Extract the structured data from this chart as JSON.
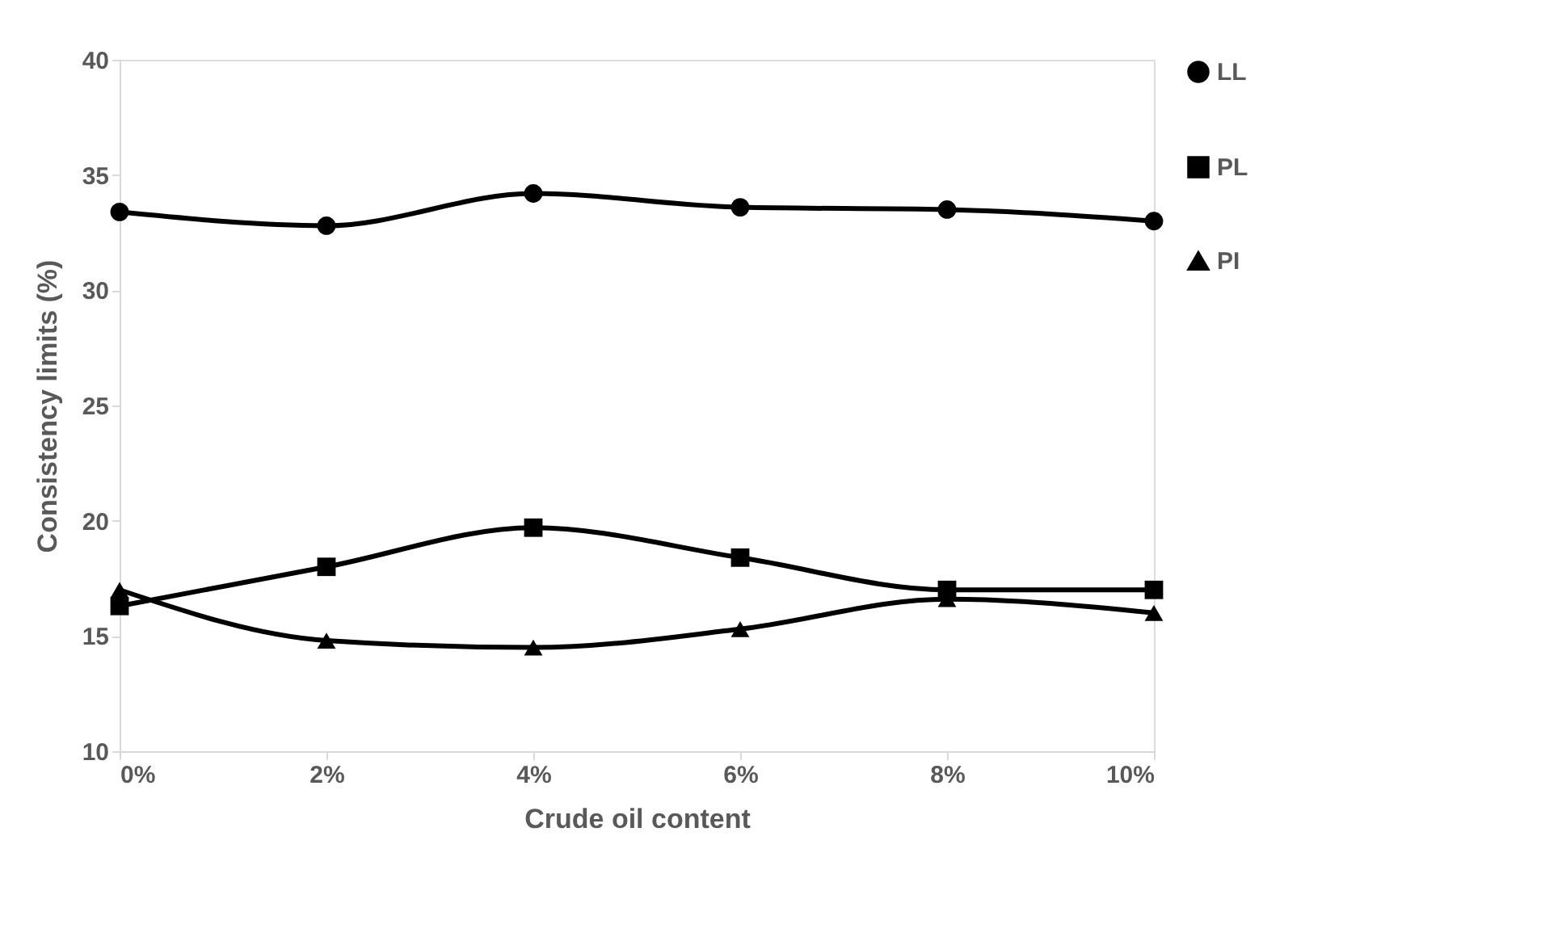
{
  "chart_data": {
    "type": "line",
    "xlabel": "Crude oil content",
    "ylabel": "Consistency limits (%)",
    "categories": [
      "0%",
      "2%",
      "4%",
      "6%",
      "8%",
      "10%"
    ],
    "series": [
      {
        "name": "LL",
        "color": "#000000",
        "marker": "circle",
        "values": [
          33.4,
          32.8,
          34.2,
          33.6,
          33.5,
          33.0
        ]
      },
      {
        "name": "PL",
        "color": "#000000",
        "marker": "square",
        "values": [
          16.3,
          18.0,
          19.7,
          18.4,
          17.0,
          17.0
        ]
      },
      {
        "name": "PI",
        "color": "#000000",
        "marker": "triangle",
        "values": [
          17.0,
          14.8,
          14.5,
          15.3,
          16.6,
          16.0
        ]
      }
    ],
    "ylim": [
      10,
      40
    ],
    "yticks": [
      10,
      15,
      20,
      25,
      30,
      35,
      40
    ],
    "grid": false,
    "legend": "right",
    "line_style": "solid"
  }
}
